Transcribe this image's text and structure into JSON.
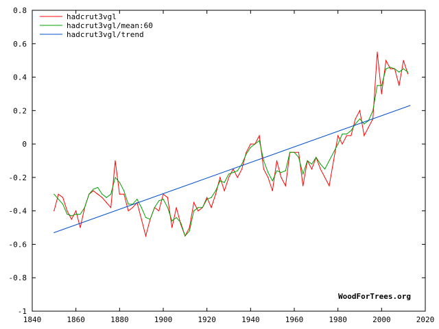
{
  "credit": "WoodForTrees.org",
  "chart_data": {
    "type": "line",
    "title": "",
    "xlabel": "",
    "ylabel": "",
    "xlim": [
      1840,
      2020
    ],
    "ylim": [
      -1,
      0.8
    ],
    "grid": false,
    "legend_position": "top-left",
    "x_ticks": [
      "1840",
      "1860",
      "1880",
      "1900",
      "1920",
      "1940",
      "1960",
      "1980",
      "2000",
      "2020"
    ],
    "y_ticks": [
      "0.8",
      "0.6",
      "0.4",
      "0.2",
      "0",
      "-0.2",
      "-0.4",
      "-0.6",
      "-0.8",
      "-1"
    ],
    "series": [
      {
        "name": "hadcrut3vgl",
        "color": "#ff0000",
        "description_points_approx": true,
        "x": [
          1850,
          1852,
          1854,
          1856,
          1858,
          1860,
          1862,
          1864,
          1866,
          1868,
          1870,
          1872,
          1874,
          1876,
          1878,
          1880,
          1882,
          1884,
          1886,
          1888,
          1890,
          1892,
          1894,
          1896,
          1898,
          1900,
          1902,
          1904,
          1906,
          1908,
          1910,
          1912,
          1914,
          1916,
          1918,
          1920,
          1922,
          1924,
          1926,
          1928,
          1930,
          1932,
          1934,
          1936,
          1938,
          1940,
          1942,
          1944,
          1946,
          1948,
          1950,
          1952,
          1954,
          1956,
          1958,
          1960,
          1962,
          1964,
          1966,
          1968,
          1970,
          1972,
          1974,
          1976,
          1978,
          1980,
          1982,
          1984,
          1986,
          1988,
          1990,
          1992,
          1994,
          1996,
          1998,
          2000,
          2002,
          2004,
          2006,
          2008,
          2010,
          2012
        ],
        "values": [
          -0.4,
          -0.3,
          -0.32,
          -0.4,
          -0.45,
          -0.4,
          -0.5,
          -0.38,
          -0.3,
          -0.28,
          -0.3,
          -0.32,
          -0.35,
          -0.38,
          -0.1,
          -0.3,
          -0.3,
          -0.4,
          -0.38,
          -0.35,
          -0.45,
          -0.55,
          -0.45,
          -0.38,
          -0.4,
          -0.3,
          -0.32,
          -0.5,
          -0.38,
          -0.48,
          -0.55,
          -0.5,
          -0.35,
          -0.4,
          -0.38,
          -0.32,
          -0.38,
          -0.3,
          -0.2,
          -0.28,
          -0.2,
          -0.15,
          -0.2,
          -0.15,
          -0.05,
          0.0,
          0.0,
          0.05,
          -0.15,
          -0.2,
          -0.28,
          -0.1,
          -0.2,
          -0.25,
          -0.05,
          -0.05,
          -0.05,
          -0.25,
          -0.1,
          -0.15,
          -0.08,
          -0.15,
          -0.2,
          -0.25,
          -0.1,
          0.05,
          0.0,
          0.05,
          0.05,
          0.15,
          0.2,
          0.05,
          0.1,
          0.15,
          0.55,
          0.3,
          0.5,
          0.45,
          0.45,
          0.35,
          0.5,
          0.42
        ]
      },
      {
        "name": "hadcrut3vgl/mean:60",
        "color": "#00a000",
        "x": [
          1850,
          1852,
          1854,
          1856,
          1858,
          1860,
          1862,
          1864,
          1866,
          1868,
          1870,
          1872,
          1874,
          1876,
          1878,
          1880,
          1882,
          1884,
          1886,
          1888,
          1890,
          1892,
          1894,
          1896,
          1898,
          1900,
          1902,
          1904,
          1906,
          1908,
          1910,
          1912,
          1914,
          1916,
          1918,
          1920,
          1922,
          1924,
          1926,
          1928,
          1930,
          1932,
          1934,
          1936,
          1938,
          1940,
          1942,
          1944,
          1946,
          1948,
          1950,
          1952,
          1954,
          1956,
          1958,
          1960,
          1962,
          1964,
          1966,
          1968,
          1970,
          1972,
          1974,
          1976,
          1978,
          1980,
          1982,
          1984,
          1986,
          1988,
          1990,
          1992,
          1994,
          1996,
          1998,
          2000,
          2002,
          2004,
          2006,
          2008,
          2010,
          2012
        ],
        "values": [
          -0.3,
          -0.33,
          -0.36,
          -0.42,
          -0.43,
          -0.42,
          -0.42,
          -0.38,
          -0.3,
          -0.27,
          -0.26,
          -0.3,
          -0.32,
          -0.3,
          -0.2,
          -0.23,
          -0.28,
          -0.36,
          -0.36,
          -0.33,
          -0.38,
          -0.44,
          -0.45,
          -0.38,
          -0.34,
          -0.33,
          -0.38,
          -0.46,
          -0.44,
          -0.47,
          -0.55,
          -0.52,
          -0.4,
          -0.38,
          -0.38,
          -0.33,
          -0.32,
          -0.28,
          -0.22,
          -0.23,
          -0.18,
          -0.17,
          -0.16,
          -0.12,
          -0.06,
          -0.02,
          0.0,
          0.02,
          -0.1,
          -0.17,
          -0.22,
          -0.16,
          -0.17,
          -0.16,
          -0.05,
          -0.05,
          -0.08,
          -0.18,
          -0.1,
          -0.12,
          -0.08,
          -0.12,
          -0.15,
          -0.1,
          -0.05,
          0.0,
          0.06,
          0.06,
          0.08,
          0.12,
          0.15,
          0.12,
          0.14,
          0.2,
          0.35,
          0.35,
          0.45,
          0.46,
          0.45,
          0.43,
          0.45,
          0.43
        ]
      },
      {
        "name": "hadcrut3vgl/trend",
        "color": "#0050d0",
        "x": [
          1850,
          2013
        ],
        "values": [
          -0.53,
          0.23
        ]
      }
    ]
  }
}
